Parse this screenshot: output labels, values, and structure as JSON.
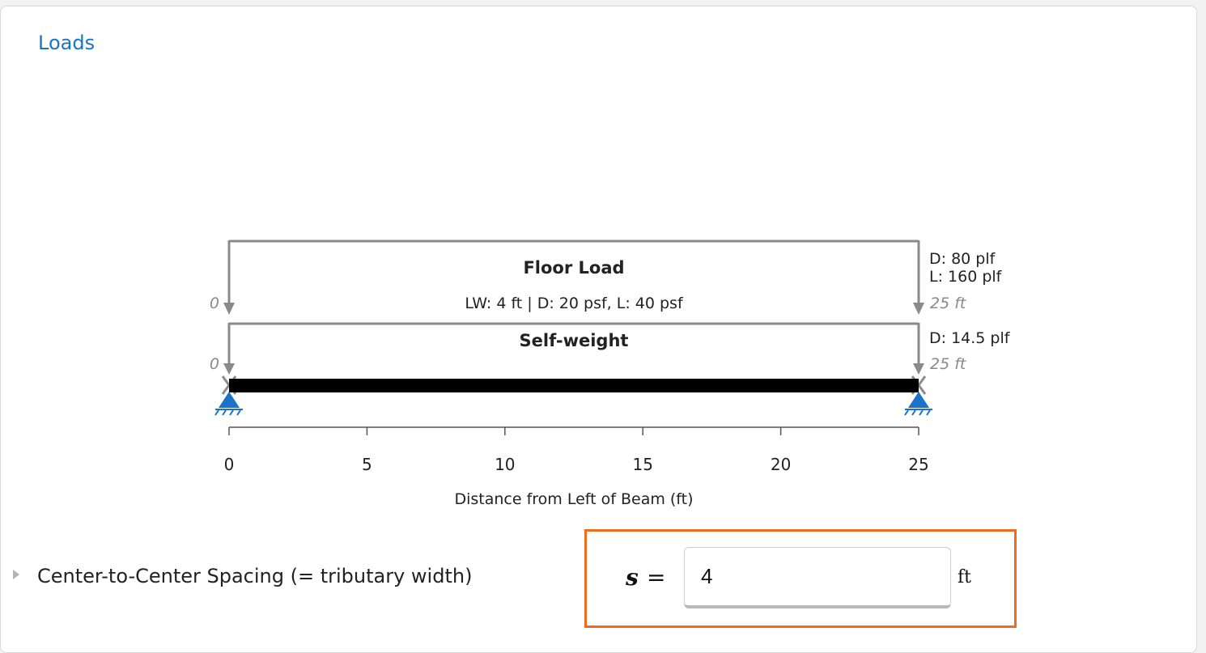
{
  "section": {
    "title": "Loads"
  },
  "diagram": {
    "beam_length_ft": 25,
    "support_color": "#1a73c9",
    "load_color": "#8a8a8a",
    "floor_load": {
      "title": "Floor Load",
      "subtitle": "LW: 4 ft | D: 20 psf, L: 40 psf",
      "start_label": "0",
      "end_label": "25 ft",
      "right_line1": "D: 80 plf",
      "right_line2": "L: 160 plf"
    },
    "self_weight": {
      "title": "Self-weight",
      "start_label": "0",
      "end_label": "25 ft",
      "right_line1": "D: 14.5 plf"
    },
    "axis": {
      "ticks": [
        "0",
        "5",
        "10",
        "15",
        "20",
        "25"
      ],
      "label": "Distance from Left of Beam (ft)"
    }
  },
  "spacing": {
    "label": "Center-to-Center Spacing (= tributary width)",
    "variable": "s",
    "equals": "=",
    "value": "4",
    "unit": "ft",
    "highlight_color": "#f26b1d"
  }
}
